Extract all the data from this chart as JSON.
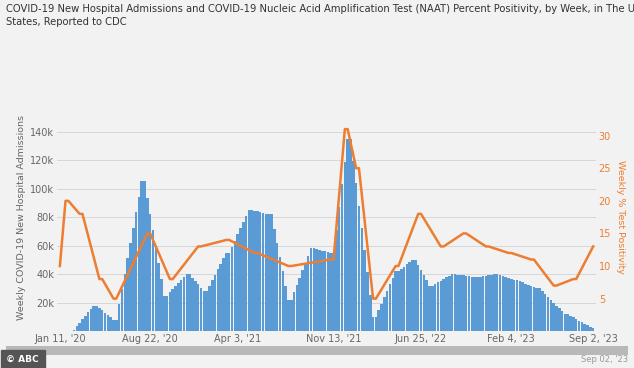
{
  "title": "COVID-19 New Hospital Admissions and COVID-19 Nucleic Acid Amplification Test (NAAT) Percent Positivity, by Week, in The United\nStates, Reported to CDC",
  "ylabel_left": "Weekly COVID-19 New Hospital Admissions",
  "ylabel_right": "Weekly % Test Positivity",
  "xlabel_ticks": [
    "Jan 11, '20",
    "Aug 22, '20",
    "Apr 3, '21",
    "Nov 13, '21",
    "Jun 25, '22",
    "Feb 4, '23",
    "Sep 2, '23"
  ],
  "bar_color": "#5B9BD5",
  "line_color": "#ED7D31",
  "ylim_left": [
    0,
    160000
  ],
  "ylim_right": [
    0,
    35
  ],
  "yticks_left": [
    20000,
    40000,
    60000,
    80000,
    100000,
    120000,
    140000
  ],
  "yticks_right": [
    5,
    10,
    15,
    20,
    25,
    30
  ],
  "background_color": "#f2f2f2",
  "watermark": "© ABC",
  "watermark_right": "Sep 02, '23",
  "title_fontsize": 7.2,
  "axis_label_fontsize": 6.8,
  "tick_fontsize": 7
}
